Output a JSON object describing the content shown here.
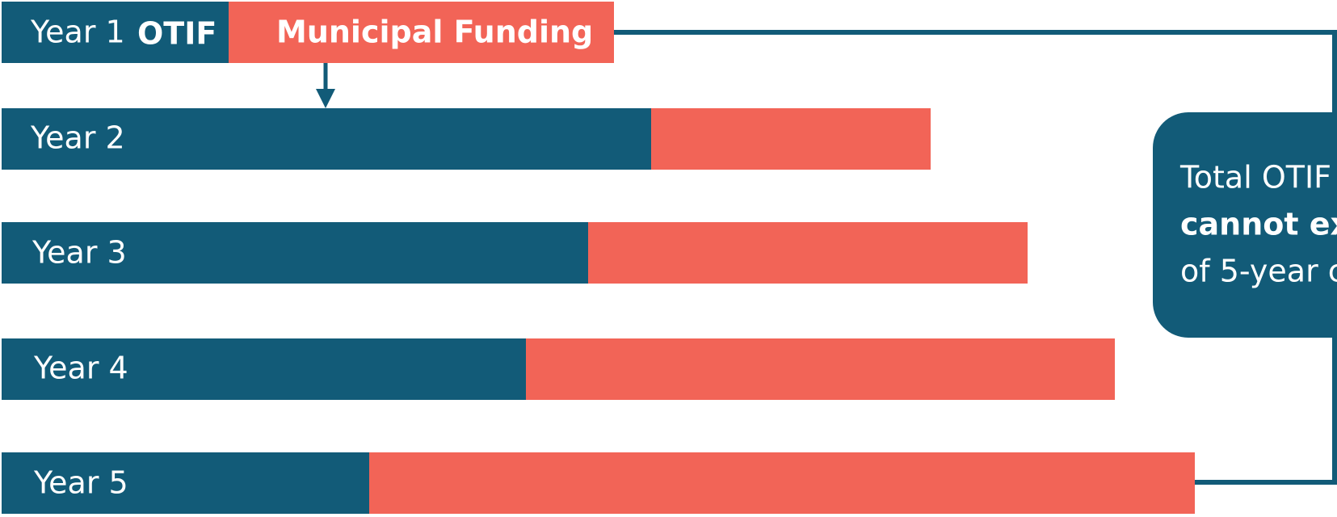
{
  "rows": [
    {
      "label": "Year 1",
      "otif": "OTIF",
      "funding": "Municipal Funding"
    },
    {
      "label": "Year 2"
    },
    {
      "label": "Year 3"
    },
    {
      "label": "Year 4"
    },
    {
      "label": "Year 5"
    }
  ],
  "callout": {
    "lines": [
      "Total OTIF",
      "cannot ex",
      "of 5-year c"
    ]
  }
}
